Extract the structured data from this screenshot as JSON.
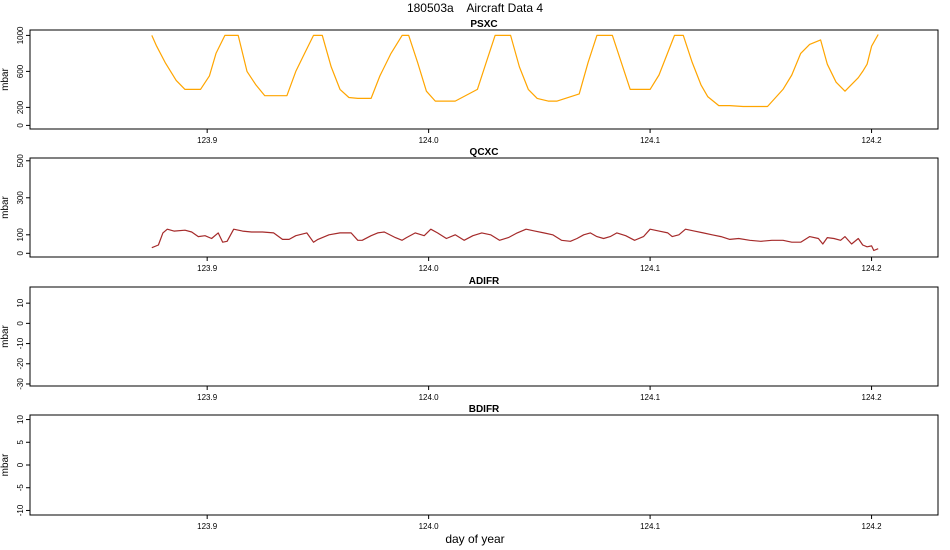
{
  "figure": {
    "title": "180503a    Aircraft Data 4",
    "xlabel": "day of year"
  },
  "colors": {
    "psxc": "#ffa500",
    "qcxc": "#a52a2a",
    "frame": "#000000",
    "background": "#ffffff"
  },
  "chart_data": [
    {
      "type": "line",
      "title": "PSXC",
      "ylabel": "mbar",
      "xlim": [
        123.82,
        124.23
      ],
      "ylim": [
        -40,
        1060
      ],
      "xticks": [
        123.9,
        124.0,
        124.1,
        124.2
      ],
      "xticklabels": [
        "123.9",
        "124.0",
        "124.1",
        "124.2"
      ],
      "yticks": [
        0,
        200,
        600,
        1000
      ],
      "yticklabels": [
        "0",
        "200",
        "600",
        "1000"
      ],
      "series": [
        {
          "color": "#ffa500",
          "x": [
            123.875,
            123.877,
            123.881,
            123.886,
            123.89,
            123.893,
            123.897,
            123.901,
            123.904,
            123.908,
            123.91,
            123.914,
            123.918,
            123.922,
            123.926,
            123.93,
            123.936,
            123.94,
            123.944,
            123.948,
            123.952,
            123.956,
            123.96,
            123.964,
            123.968,
            123.974,
            123.978,
            123.983,
            123.988,
            123.991,
            123.995,
            123.999,
            124.003,
            124.008,
            124.012,
            124.022,
            124.026,
            124.03,
            124.034,
            124.037,
            124.041,
            124.045,
            124.049,
            124.054,
            124.058,
            124.068,
            124.072,
            124.076,
            124.08,
            124.083,
            124.087,
            124.091,
            124.095,
            124.1,
            124.104,
            124.111,
            124.115,
            124.119,
            124.123,
            124.126,
            124.131,
            124.136,
            124.142,
            124.147,
            124.153,
            124.16,
            124.164,
            124.168,
            124.172,
            124.177,
            124.18,
            124.184,
            124.188,
            124.19,
            124.194,
            124.196,
            124.198,
            124.2,
            124.203
          ],
          "values": [
            1000,
            890,
            700,
            500,
            400,
            400,
            400,
            550,
            800,
            1000,
            1000,
            1000,
            600,
            450,
            330,
            330,
            330,
            600,
            800,
            1000,
            1000,
            650,
            400,
            310,
            300,
            300,
            550,
            800,
            1000,
            1000,
            700,
            380,
            270,
            270,
            270,
            400,
            700,
            1000,
            1000,
            1000,
            650,
            400,
            300,
            270,
            270,
            350,
            700,
            1000,
            1000,
            1000,
            700,
            400,
            400,
            400,
            560,
            1000,
            1000,
            700,
            450,
            320,
            220,
            220,
            210,
            210,
            210,
            400,
            560,
            800,
            900,
            950,
            680,
            480,
            380,
            430,
            530,
            600,
            680,
            880,
            1010
          ]
        }
      ]
    },
    {
      "type": "line",
      "title": "QCXC",
      "ylabel": "mbar",
      "xlim": [
        123.82,
        124.23
      ],
      "ylim": [
        -20,
        515
      ],
      "xticks": [
        123.9,
        124.0,
        124.1,
        124.2
      ],
      "xticklabels": [
        "123.9",
        "124.0",
        "124.1",
        "124.2"
      ],
      "yticks": [
        0,
        100,
        300,
        500
      ],
      "yticklabels": [
        "0",
        "100",
        "300",
        "500"
      ],
      "series": [
        {
          "color": "#a52a2a",
          "x": [
            123.875,
            123.878,
            123.88,
            123.882,
            123.885,
            123.89,
            123.893,
            123.896,
            123.899,
            123.902,
            123.905,
            123.907,
            123.909,
            123.912,
            123.916,
            123.92,
            123.925,
            123.93,
            123.934,
            123.937,
            123.94,
            123.945,
            123.948,
            123.95,
            123.955,
            123.96,
            123.965,
            123.968,
            123.97,
            123.974,
            123.977,
            123.98,
            123.985,
            123.988,
            123.99,
            123.994,
            123.998,
            124.001,
            124.004,
            124.008,
            124.012,
            124.016,
            124.02,
            124.024,
            124.028,
            124.032,
            124.036,
            124.04,
            124.044,
            124.048,
            124.052,
            124.056,
            124.06,
            124.064,
            124.067,
            124.07,
            124.073,
            124.076,
            124.079,
            124.082,
            124.085,
            124.089,
            124.093,
            124.097,
            124.1,
            124.104,
            124.108,
            124.11,
            124.113,
            124.116,
            124.12,
            124.124,
            124.128,
            124.132,
            124.136,
            124.14,
            124.145,
            124.15,
            124.155,
            124.16,
            124.164,
            124.168,
            124.172,
            124.176,
            124.178,
            124.18,
            124.183,
            124.186,
            124.188,
            124.191,
            124.194,
            124.196,
            124.198,
            124.2,
            124.201,
            124.203
          ],
          "values": [
            30,
            45,
            110,
            130,
            120,
            125,
            115,
            90,
            95,
            80,
            110,
            60,
            65,
            130,
            120,
            115,
            115,
            110,
            75,
            75,
            95,
            110,
            60,
            75,
            100,
            110,
            110,
            70,
            70,
            95,
            110,
            115,
            85,
            70,
            85,
            110,
            95,
            130,
            110,
            80,
            100,
            70,
            95,
            110,
            100,
            70,
            85,
            110,
            130,
            120,
            110,
            100,
            70,
            65,
            80,
            100,
            110,
            90,
            80,
            90,
            110,
            95,
            70,
            90,
            130,
            120,
            110,
            90,
            100,
            130,
            120,
            110,
            100,
            90,
            75,
            80,
            70,
            65,
            70,
            70,
            60,
            60,
            90,
            80,
            50,
            85,
            80,
            70,
            90,
            50,
            80,
            45,
            35,
            40,
            15,
            25
          ]
        }
      ]
    },
    {
      "type": "line",
      "title": "ADIFR",
      "ylabel": "mbar",
      "xlim": [
        123.82,
        124.23
      ],
      "ylim": [
        -31,
        18
      ],
      "xticks": [
        123.9,
        124.0,
        124.1,
        124.2
      ],
      "xticklabels": [
        "123.9",
        "124.0",
        "124.1",
        "124.2"
      ],
      "yticks": [
        -30,
        -20,
        -10,
        0,
        10
      ],
      "yticklabels": [
        "-30",
        "-20",
        "-10",
        "0",
        "10"
      ],
      "series": []
    },
    {
      "type": "line",
      "title": "BDIFR",
      "ylabel": "mbar",
      "xlim": [
        123.82,
        124.23
      ],
      "ylim": [
        -11,
        11
      ],
      "xticks": [
        123.9,
        124.0,
        124.1,
        124.2
      ],
      "xticklabels": [
        "123.9",
        "124.0",
        "124.1",
        "124.2"
      ],
      "yticks": [
        -10,
        -5,
        0,
        5,
        10
      ],
      "yticklabels": [
        "-10",
        "-5",
        "0",
        "5",
        "10"
      ],
      "series": []
    }
  ]
}
